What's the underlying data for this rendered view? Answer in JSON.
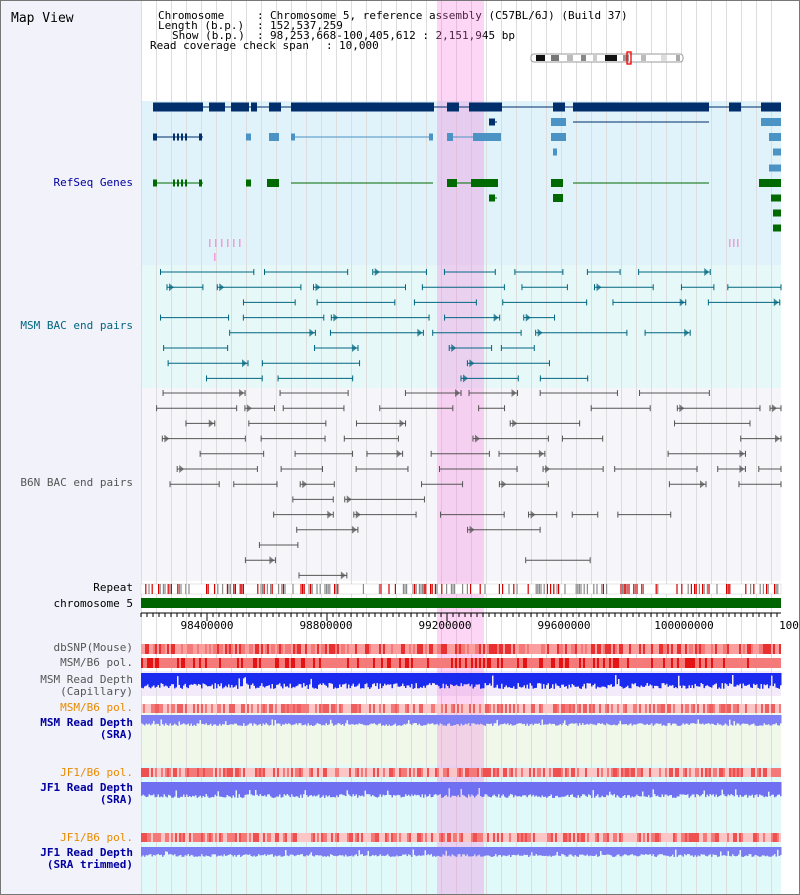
{
  "view": {
    "title": "Map View"
  },
  "info": {
    "chromosome_label": "Chromosome",
    "chromosome_value": "Chromosome 5, reference assembly (C57BL/6J) (Build 37)",
    "length_label": "Length (b.p.)",
    "length_value": "152,537,259",
    "show_label": "Show (b.p.)",
    "show_value": "98,253,668-100,405,612 : 2,151,945 bp",
    "coverage_label": "Read coverage check span",
    "coverage_value": "10,000"
  },
  "tracks": {
    "refseq": "RefSeq Genes",
    "msm_bac": "MSM BAC end pairs",
    "b6n_bac": "B6N BAC end pairs",
    "repeat": "Repeat",
    "chromosome": "chromosome 5",
    "dbsnp": "dbSNP(Mouse)",
    "msm_b6_pol": "MSM/B6 pol.",
    "msm_read_depth_cap": "MSM Read Depth\n(Capillary)",
    "msm_b6_pol2": "MSM/B6 pol.",
    "msm_read_depth_sra": "MSM Read Depth\n(SRA)",
    "jf1_b6_pol": "JF1/B6 pol.",
    "jf1_read_depth_sra": "JF1 Read Depth\n(SRA)",
    "jf1_b6_pol2": "JF1/B6 pol.",
    "jf1_read_depth_trim": "JF1 Read Depth\n(SRA trimmed)"
  },
  "axis": {
    "ticks": [
      "98400000",
      "98800000",
      "99200000",
      "99600000",
      "100000000",
      "100"
    ],
    "start": 98253668,
    "end": 100405612
  },
  "colors": {
    "refseq_bg": "#e0f2fa",
    "msm_bg": "#e9fafa",
    "b6n_bg": "#f6f6fb",
    "highlight": "#f6c6ee",
    "gene_dark": "#002f6c",
    "gene_light": "#4a93c4",
    "gene_green": "#006a00",
    "msm_line": "#006680",
    "b6n_line": "#555555",
    "chrom": "#006400"
  }
}
